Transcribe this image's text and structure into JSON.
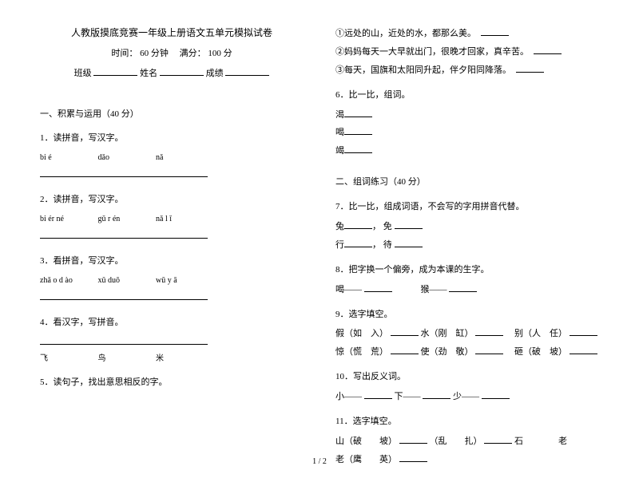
{
  "header": {
    "title": "人教版摸底竞赛一年级上册语文五单元模拟试卷",
    "time_label": "时间：",
    "time_value": "60 分钟",
    "score_label": "满分：",
    "score_value": "100 分",
    "class_label": "班级",
    "name_label": "姓名",
    "grade_label": "成绩"
  },
  "section1": {
    "heading": "一、积累与运用（40 分）",
    "q1": {
      "title": "1．读拼音，写汉字。",
      "items": [
        "bi é",
        "dǎo",
        "nǎ"
      ]
    },
    "q2": {
      "title": "2．读拼音，写汉字。",
      "items": [
        "bi ér né",
        "gǔ r én",
        "nǎ l ǐ"
      ]
    },
    "q3": {
      "title": "3．看拼音，写汉字。",
      "items": [
        "zhǎ o d ào",
        "xǔ duō",
        "wū y ā"
      ]
    },
    "q4": {
      "title": "4．看汉字，写拼音。",
      "items": [
        "飞",
        "鸟",
        "米"
      ]
    },
    "q5": {
      "title": "5．读句子，找出意思相反的字。",
      "lines": [
        "①远处的山，近处的水，都那么美。",
        "②妈妈每天一大早就出门，很晚才回家，真辛苦。",
        "③每天，国旗和太阳同升起，伴夕阳同降落。"
      ]
    },
    "q6": {
      "title": "6．比一比，组词。",
      "items": [
        "渴",
        "喝",
        "竭"
      ]
    }
  },
  "section2": {
    "heading": "二、组词练习（40 分）",
    "q7": {
      "title": "7．比一比，组成词语，不会写的字用拼音代替。",
      "rows": [
        [
          "兔",
          "免"
        ],
        [
          "行",
          "待"
        ]
      ]
    },
    "q8": {
      "title": "8．把字换一个偏旁，成为本课的生字。",
      "items": [
        "喝——",
        "猴——"
      ]
    },
    "q9": {
      "title": "9．选字填空。",
      "rows": [
        {
          "a": "假（如　入）",
          "b": "水（刚　缸）",
          "c": "别（人　任）"
        },
        {
          "a": "惊（慌　荒）",
          "b": "使（劲　敬）",
          "c": "砸（破　坡）"
        }
      ]
    },
    "q10": {
      "title": "10．写出反义词。",
      "items": [
        "小——",
        "下——",
        "少——"
      ]
    },
    "q11": {
      "title": "11．选字填空。",
      "line1": [
        "山（破　　坡）",
        "（乱　　扎）",
        "石"
      ],
      "line2": "老（鹰　　英）"
    }
  },
  "footer": "1 / 2"
}
